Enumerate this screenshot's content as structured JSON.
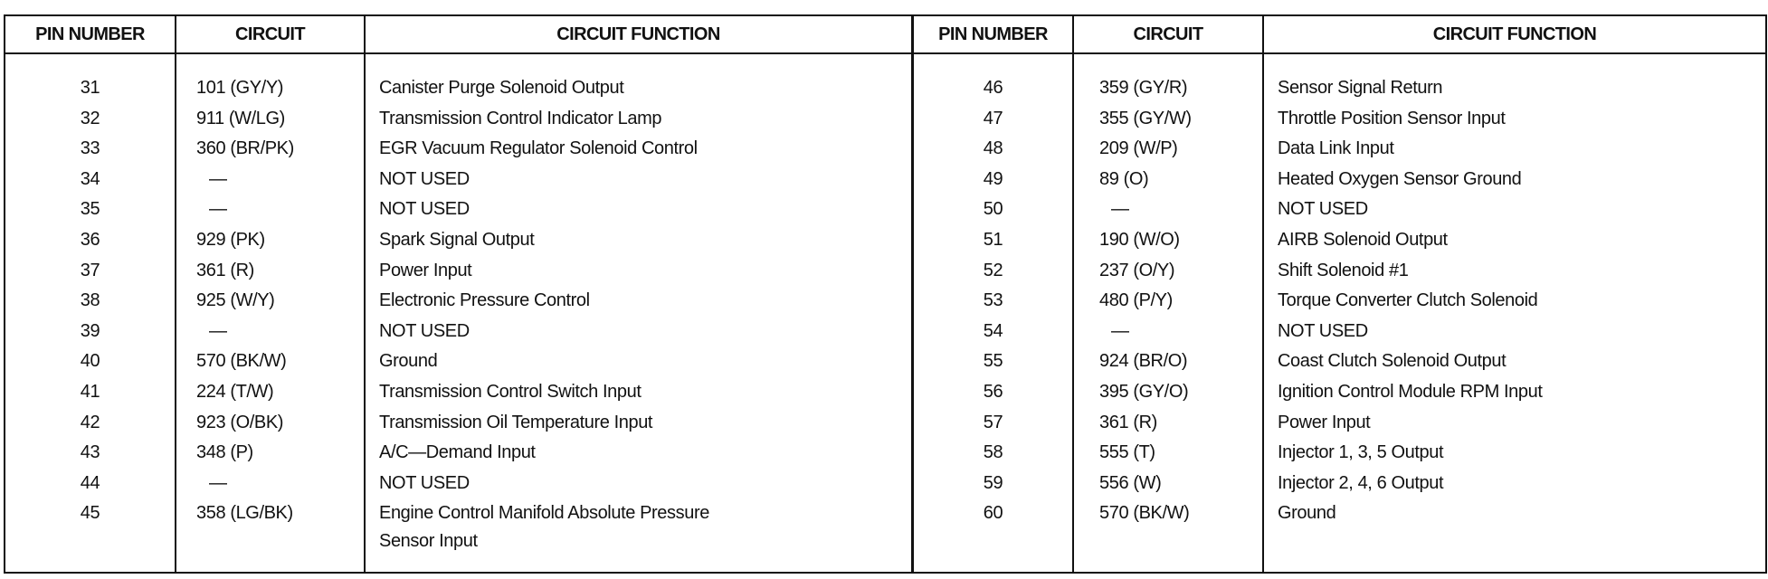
{
  "headers": {
    "pin": "PIN NUMBER",
    "circuit": "CIRCUIT",
    "function": "CIRCUIT FUNCTION"
  },
  "left_rows": [
    {
      "pin": "31",
      "circuit": "101 (GY/Y)",
      "function": "Canister Purge Solenoid Output"
    },
    {
      "pin": "32",
      "circuit": "911 (W/LG)",
      "function": "Transmission Control Indicator Lamp"
    },
    {
      "pin": "33",
      "circuit": "360 (BR/PK)",
      "function": "EGR Vacuum Regulator Solenoid Control"
    },
    {
      "pin": "34",
      "circuit": "—",
      "function": "NOT USED"
    },
    {
      "pin": "35",
      "circuit": "—",
      "function": "NOT USED"
    },
    {
      "pin": "36",
      "circuit": "929 (PK)",
      "function": "Spark Signal Output"
    },
    {
      "pin": "37",
      "circuit": "361 (R)",
      "function": "Power Input"
    },
    {
      "pin": "38",
      "circuit": "925 (W/Y)",
      "function": "Electronic Pressure Control"
    },
    {
      "pin": "39",
      "circuit": "—",
      "function": "NOT USED"
    },
    {
      "pin": "40",
      "circuit": "570 (BK/W)",
      "function": "Ground"
    },
    {
      "pin": "41",
      "circuit": "224 (T/W)",
      "function": "Transmission Control Switch Input"
    },
    {
      "pin": "42",
      "circuit": "923 (O/BK)",
      "function": "Transmission Oil Temperature Input"
    },
    {
      "pin": "43",
      "circuit": "348 (P)",
      "function": "A/C—Demand Input"
    },
    {
      "pin": "44",
      "circuit": "—",
      "function": "NOT USED"
    },
    {
      "pin": "45",
      "circuit": "358 (LG/BK)",
      "function": "Engine Control Manifold Absolute Pressure",
      "function_line2": "Sensor Input"
    }
  ],
  "right_rows": [
    {
      "pin": "46",
      "circuit": "359 (GY/R)",
      "function": "Sensor Signal Return"
    },
    {
      "pin": "47",
      "circuit": "355 (GY/W)",
      "function": "Throttle Position Sensor Input"
    },
    {
      "pin": "48",
      "circuit": "209 (W/P)",
      "function": "Data Link Input"
    },
    {
      "pin": "49",
      "circuit": "89 (O)",
      "function": "Heated Oxygen Sensor Ground"
    },
    {
      "pin": "50",
      "circuit": "—",
      "function": "NOT USED"
    },
    {
      "pin": "51",
      "circuit": "190 (W/O)",
      "function": "AIRB Solenoid Output"
    },
    {
      "pin": "52",
      "circuit": "237 (O/Y)",
      "function": "Shift Solenoid #1"
    },
    {
      "pin": "53",
      "circuit": "480 (P/Y)",
      "function": "Torque Converter Clutch Solenoid"
    },
    {
      "pin": "54",
      "circuit": "—",
      "function": "NOT USED"
    },
    {
      "pin": "55",
      "circuit": "924 (BR/O)",
      "function": "Coast Clutch Solenoid Output"
    },
    {
      "pin": "56",
      "circuit": "395 (GY/O)",
      "function": "Ignition Control Module RPM Input"
    },
    {
      "pin": "57",
      "circuit": "361 (R)",
      "function": "Power Input"
    },
    {
      "pin": "58",
      "circuit": "555 (T)",
      "function": "Injector 1, 3, 5 Output"
    },
    {
      "pin": "59",
      "circuit": "556 (W)",
      "function": "Injector 2, 4, 6 Output"
    },
    {
      "pin": "60",
      "circuit": "570 (BK/W)",
      "function": "Ground"
    }
  ]
}
